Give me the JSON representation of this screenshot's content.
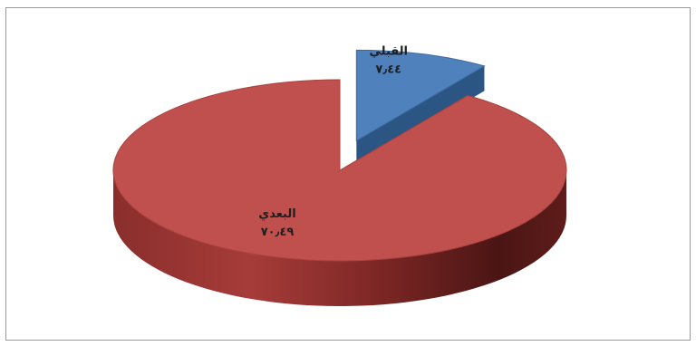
{
  "chart_data": {
    "type": "pie",
    "style": "3d-exploded",
    "categories": [
      "القبلي",
      "البعدي"
    ],
    "values": [
      7.44,
      70.49
    ],
    "value_labels": [
      "٧٫٤٤",
      "٧٠٫٤٩"
    ],
    "colors": [
      "#4f81bd",
      "#c0504d"
    ],
    "title": "",
    "legend": "none"
  }
}
